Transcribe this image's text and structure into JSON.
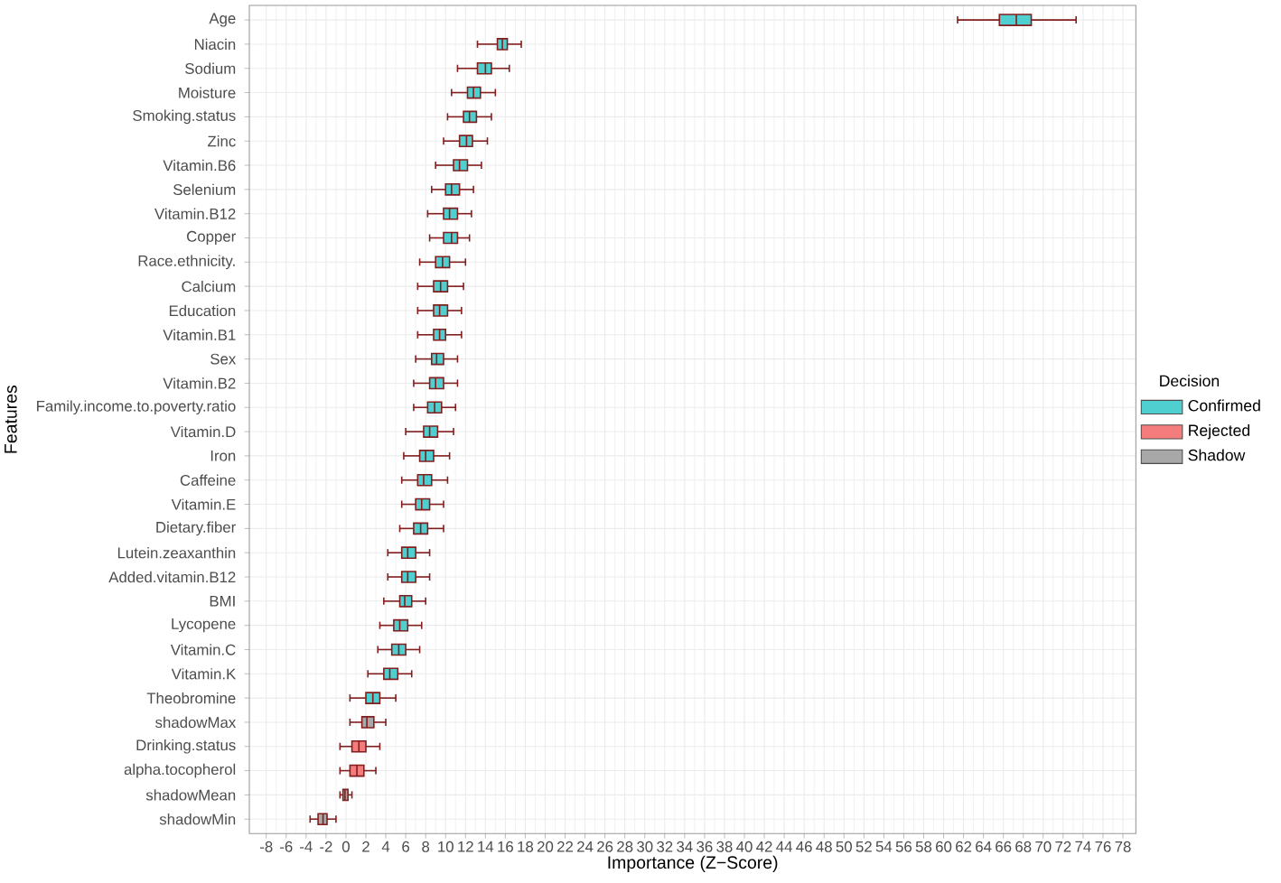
{
  "chart_data": {
    "type": "box",
    "orientation": "horizontal",
    "xlabel": "Importance (Z−Score)",
    "ylabel": "Features",
    "legend_title": "Decision",
    "legend": "right",
    "grid": true,
    "categories": [
      "Age",
      "Niacin",
      "Sodium",
      "Moisture",
      "Smoking.status",
      "Zinc",
      "Vitamin.B6",
      "Selenium",
      "Vitamin.B12",
      "Copper",
      "Race.ethnicity.",
      "Calcium",
      "Education",
      "Vitamin.B1",
      "Sex",
      "Vitamin.B2",
      "Family.income.to.poverty.ratio",
      "Vitamin.D",
      "Iron",
      "Caffeine",
      "Vitamin.E",
      "Dietary.fiber",
      "Lutein.zeaxanthin",
      "Added.vitamin.B12",
      "BMI",
      "Lycopene",
      "Vitamin.C",
      "Vitamin.K",
      "Theobromine",
      "shadowMax",
      "Drinking.status",
      "alpha.tocopherol",
      "shadowMean",
      "shadowMin"
    ],
    "xlim": [
      -9.7,
      79.3
    ],
    "xticks": [
      -8,
      -6,
      -4,
      -2,
      0,
      2,
      4,
      6,
      8,
      10,
      12,
      14,
      16,
      18,
      20,
      22,
      24,
      26,
      28,
      30,
      32,
      34,
      36,
      38,
      40,
      42,
      44,
      46,
      48,
      50,
      52,
      54,
      56,
      58,
      60,
      62,
      64,
      66,
      68,
      70,
      72,
      74,
      76,
      78
    ],
    "series": [
      {
        "name": "Confirmed",
        "color": "#4fcfcf",
        "boxes": [
          {
            "low": 61.4,
            "q1": 65.6,
            "median": 67.3,
            "q3": 68.8,
            "high": 73.3
          },
          {
            "low": 13.2,
            "q1": 15.2,
            "median": 15.7,
            "q3": 16.2,
            "high": 17.6
          },
          {
            "low": 11.2,
            "q1": 13.2,
            "median": 14.0,
            "q3": 14.6,
            "high": 16.4
          },
          {
            "low": 10.6,
            "q1": 12.2,
            "median": 12.8,
            "q3": 13.5,
            "high": 15.0
          },
          {
            "low": 10.2,
            "q1": 11.8,
            "median": 12.4,
            "q3": 13.1,
            "high": 14.6
          },
          {
            "low": 9.8,
            "q1": 11.4,
            "median": 12.1,
            "q3": 12.7,
            "high": 14.2
          },
          {
            "low": 9.0,
            "q1": 10.8,
            "median": 11.4,
            "q3": 12.2,
            "high": 13.6
          },
          {
            "low": 8.6,
            "q1": 10.0,
            "median": 10.6,
            "q3": 11.4,
            "high": 12.8
          },
          {
            "low": 8.2,
            "q1": 9.8,
            "median": 10.4,
            "q3": 11.2,
            "high": 12.6
          },
          {
            "low": 8.4,
            "q1": 9.8,
            "median": 10.6,
            "q3": 11.2,
            "high": 12.4
          },
          {
            "low": 7.4,
            "q1": 9.0,
            "median": 9.7,
            "q3": 10.4,
            "high": 12.0
          },
          {
            "low": 7.2,
            "q1": 8.8,
            "median": 9.5,
            "q3": 10.2,
            "high": 11.8
          },
          {
            "low": 7.2,
            "q1": 8.8,
            "median": 9.4,
            "q3": 10.2,
            "high": 11.6
          },
          {
            "low": 7.2,
            "q1": 8.8,
            "median": 9.4,
            "q3": 10.0,
            "high": 11.6
          },
          {
            "low": 7.0,
            "q1": 8.6,
            "median": 9.1,
            "q3": 9.8,
            "high": 11.2
          },
          {
            "low": 6.8,
            "q1": 8.4,
            "median": 9.0,
            "q3": 9.8,
            "high": 11.2
          },
          {
            "low": 6.8,
            "q1": 8.2,
            "median": 8.9,
            "q3": 9.6,
            "high": 11.0
          },
          {
            "low": 6.0,
            "q1": 7.8,
            "median": 8.4,
            "q3": 9.2,
            "high": 10.8
          },
          {
            "low": 5.8,
            "q1": 7.4,
            "median": 8.0,
            "q3": 8.8,
            "high": 10.4
          },
          {
            "low": 5.6,
            "q1": 7.2,
            "median": 7.8,
            "q3": 8.6,
            "high": 10.2
          },
          {
            "low": 5.6,
            "q1": 7.0,
            "median": 7.6,
            "q3": 8.4,
            "high": 9.8
          },
          {
            "low": 5.4,
            "q1": 6.8,
            "median": 7.5,
            "q3": 8.2,
            "high": 9.8
          },
          {
            "low": 4.2,
            "q1": 5.6,
            "median": 6.2,
            "q3": 7.0,
            "high": 8.4
          },
          {
            "low": 4.2,
            "q1": 5.6,
            "median": 6.2,
            "q3": 7.0,
            "high": 8.4
          },
          {
            "low": 3.8,
            "q1": 5.4,
            "median": 5.9,
            "q3": 6.6,
            "high": 8.0
          },
          {
            "low": 3.4,
            "q1": 4.8,
            "median": 5.4,
            "q3": 6.2,
            "high": 7.6
          },
          {
            "low": 3.2,
            "q1": 4.6,
            "median": 5.3,
            "q3": 6.0,
            "high": 7.4
          },
          {
            "low": 2.2,
            "q1": 3.8,
            "median": 4.4,
            "q3": 5.2,
            "high": 6.6
          },
          {
            "low": 0.4,
            "q1": 2.0,
            "median": 2.7,
            "q3": 3.4,
            "high": 5.0
          },
          null,
          null,
          null,
          null,
          null
        ]
      },
      {
        "name": "Rejected",
        "color": "#f47c7c",
        "boxes": [
          null,
          null,
          null,
          null,
          null,
          null,
          null,
          null,
          null,
          null,
          null,
          null,
          null,
          null,
          null,
          null,
          null,
          null,
          null,
          null,
          null,
          null,
          null,
          null,
          null,
          null,
          null,
          null,
          null,
          null,
          {
            "low": -0.6,
            "q1": 0.6,
            "median": 1.3,
            "q3": 2.0,
            "high": 3.4
          },
          {
            "low": -0.6,
            "q1": 0.4,
            "median": 1.1,
            "q3": 1.8,
            "high": 3.0
          },
          null,
          null
        ]
      },
      {
        "name": "Shadow",
        "color": "#a8a8a8",
        "boxes": [
          null,
          null,
          null,
          null,
          null,
          null,
          null,
          null,
          null,
          null,
          null,
          null,
          null,
          null,
          null,
          null,
          null,
          null,
          null,
          null,
          null,
          null,
          null,
          null,
          null,
          null,
          null,
          null,
          null,
          {
            "low": 0.4,
            "q1": 1.6,
            "median": 2.1,
            "q3": 2.8,
            "high": 4.0
          },
          null,
          null,
          {
            "low": -0.6,
            "q1": -0.3,
            "median": -0.1,
            "q3": 0.2,
            "high": 0.6
          },
          {
            "low": -3.6,
            "q1": -2.8,
            "median": -2.3,
            "q3": -1.9,
            "high": -1.0
          }
        ]
      }
    ]
  }
}
